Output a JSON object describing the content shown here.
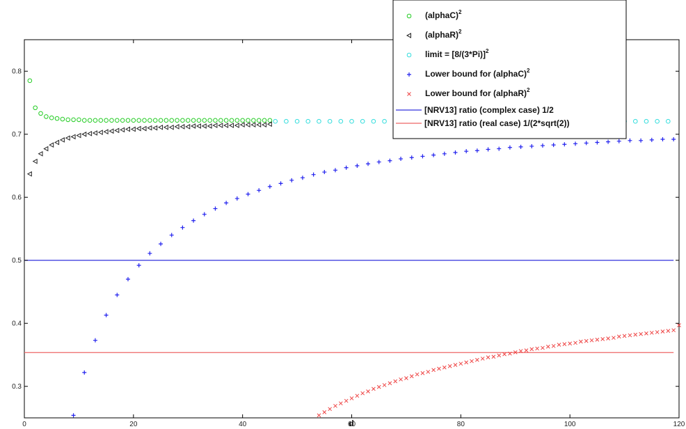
{
  "chart_data": {
    "type": "scatter",
    "xlabel": "d",
    "ylabel": "",
    "title": "",
    "xlim": [
      0,
      120
    ],
    "ylim": [
      0.25,
      0.85
    ],
    "xticks": [
      0,
      20,
      40,
      60,
      80,
      100,
      120
    ],
    "yticks": [
      0.3,
      0.4,
      0.5,
      0.6,
      0.7,
      0.8
    ],
    "xtick_labels": [
      "0",
      "20",
      "40",
      "60",
      "80",
      "100",
      "120"
    ],
    "ytick_labels": [
      "0.3",
      "0.4",
      "0.5",
      "0.6",
      "0.7",
      "0.8"
    ],
    "grid": false,
    "legend_position": "top-right",
    "series": [
      {
        "name": "(alphaC)",
        "sup": "2",
        "marker": "circle",
        "color": "#22cc22",
        "x": [
          1,
          2,
          3,
          4,
          5,
          6,
          7,
          8,
          9,
          10,
          11,
          12,
          13,
          14,
          15,
          16,
          17,
          18,
          19,
          20,
          21,
          22,
          23,
          24,
          25,
          26,
          27,
          28,
          29,
          30,
          31,
          32,
          33,
          34,
          35,
          36,
          37,
          38,
          39,
          40,
          41,
          42,
          43,
          44,
          45
        ],
        "y": [
          0.785,
          0.742,
          0.733,
          0.728,
          0.726,
          0.725,
          0.724,
          0.723,
          0.723,
          0.723,
          0.722,
          0.722,
          0.722,
          0.722,
          0.722,
          0.722,
          0.722,
          0.722,
          0.722,
          0.722,
          0.722,
          0.722,
          0.722,
          0.722,
          0.722,
          0.722,
          0.722,
          0.722,
          0.722,
          0.722,
          0.722,
          0.722,
          0.722,
          0.722,
          0.722,
          0.722,
          0.722,
          0.722,
          0.722,
          0.722,
          0.722,
          0.722,
          0.722,
          0.722,
          0.722
        ]
      },
      {
        "name": "(alphaR)",
        "sup": "2",
        "marker": "triangle-left",
        "color": "#222222",
        "x": [
          1,
          2,
          3,
          4,
          5,
          6,
          7,
          8,
          9,
          10,
          11,
          12,
          13,
          14,
          15,
          16,
          17,
          18,
          19,
          20,
          21,
          22,
          23,
          24,
          25,
          26,
          27,
          28,
          29,
          30,
          31,
          32,
          33,
          34,
          35,
          36,
          37,
          38,
          39,
          40,
          41,
          42,
          43,
          44,
          45
        ],
        "y": [
          0.637,
          0.657,
          0.669,
          0.677,
          0.683,
          0.687,
          0.691,
          0.694,
          0.696,
          0.698,
          0.7,
          0.701,
          0.702,
          0.703,
          0.704,
          0.705,
          0.706,
          0.707,
          0.708,
          0.708,
          0.709,
          0.709,
          0.71,
          0.71,
          0.711,
          0.711,
          0.711,
          0.712,
          0.712,
          0.712,
          0.713,
          0.713,
          0.713,
          0.713,
          0.714,
          0.714,
          0.714,
          0.714,
          0.714,
          0.715,
          0.715,
          0.715,
          0.715,
          0.715,
          0.716
        ]
      },
      {
        "name": "limit = [8/(3*Pi)]",
        "sup": "2",
        "marker": "circle",
        "color": "#33dddd",
        "x": [
          46,
          48,
          50,
          52,
          54,
          56,
          58,
          60,
          62,
          64,
          66,
          68,
          70,
          72,
          74,
          76,
          78,
          80,
          82,
          84,
          86,
          88,
          90,
          92,
          94,
          96,
          98,
          100,
          102,
          104,
          106,
          108,
          110,
          112,
          114,
          116,
          118
        ],
        "y": [
          0.7205,
          0.7205,
          0.7205,
          0.7205,
          0.7205,
          0.7205,
          0.7205,
          0.7205,
          0.7205,
          0.7205,
          0.7205,
          0.7205,
          0.7205,
          0.7205,
          0.7205,
          0.7205,
          0.7205,
          0.7205,
          0.7205,
          0.7205,
          0.7205,
          0.7205,
          0.7205,
          0.7205,
          0.7205,
          0.7205,
          0.7205,
          0.7205,
          0.7205,
          0.7205,
          0.7205,
          0.7205,
          0.7205,
          0.7205,
          0.7205,
          0.7205,
          0.7205
        ]
      },
      {
        "name": "Lower bound for (alphaC)",
        "sup": "2",
        "marker": "plus",
        "color": "#2222ee",
        "x": [
          9,
          11,
          13,
          15,
          17,
          19,
          21,
          23,
          25,
          27,
          29,
          31,
          33,
          35,
          37,
          39,
          41,
          43,
          45,
          47,
          49,
          51,
          53,
          55,
          57,
          59,
          61,
          63,
          65,
          67,
          69,
          71,
          73,
          75,
          77,
          79,
          81,
          83,
          85,
          87,
          89,
          91,
          93,
          95,
          97,
          99,
          101,
          103,
          105,
          107,
          109,
          111,
          113,
          115,
          117,
          119
        ],
        "y": [
          0.254,
          0.322,
          0.373,
          0.413,
          0.445,
          0.47,
          0.492,
          0.511,
          0.526,
          0.54,
          0.552,
          0.563,
          0.573,
          0.582,
          0.591,
          0.598,
          0.605,
          0.611,
          0.617,
          0.622,
          0.627,
          0.631,
          0.636,
          0.64,
          0.643,
          0.647,
          0.65,
          0.653,
          0.656,
          0.658,
          0.661,
          0.663,
          0.665,
          0.667,
          0.669,
          0.671,
          0.673,
          0.674,
          0.676,
          0.677,
          0.679,
          0.68,
          0.681,
          0.682,
          0.683,
          0.684,
          0.685,
          0.686,
          0.687,
          0.688,
          0.689,
          0.69,
          0.69,
          0.691,
          0.692,
          0.692
        ]
      },
      {
        "name": "Lower bound for (alphaR)",
        "sup": "2",
        "marker": "x",
        "color": "#ee4444",
        "x": [
          53,
          54,
          55,
          56,
          57,
          58,
          59,
          60,
          61,
          62,
          63,
          64,
          65,
          66,
          67,
          68,
          69,
          70,
          71,
          72,
          73,
          74,
          75,
          76,
          77,
          78,
          79,
          80,
          81,
          82,
          83,
          84,
          85,
          86,
          87,
          88,
          89,
          90,
          91,
          92,
          93,
          94,
          95,
          96,
          97,
          98,
          99,
          100,
          101,
          102,
          103,
          104,
          105,
          106,
          107,
          108,
          109,
          110,
          111,
          112,
          113,
          114,
          115,
          116,
          117,
          118,
          119,
          120
        ],
        "y": [
          0.249,
          0.254,
          0.259,
          0.264,
          0.269,
          0.273,
          0.277,
          0.281,
          0.285,
          0.289,
          0.292,
          0.296,
          0.299,
          0.302,
          0.305,
          0.308,
          0.311,
          0.313,
          0.316,
          0.319,
          0.321,
          0.323,
          0.326,
          0.328,
          0.33,
          0.332,
          0.334,
          0.336,
          0.338,
          0.34,
          0.342,
          0.344,
          0.346,
          0.347,
          0.349,
          0.351,
          0.352,
          0.354,
          0.356,
          0.357,
          0.359,
          0.36,
          0.361,
          0.363,
          0.364,
          0.366,
          0.367,
          0.368,
          0.369,
          0.371,
          0.372,
          0.373,
          0.374,
          0.375,
          0.376,
          0.377,
          0.379,
          0.38,
          0.381,
          0.382,
          0.383,
          0.384,
          0.385,
          0.386,
          0.387,
          0.388,
          0.389,
          0.397
        ]
      }
    ],
    "lines": [
      {
        "name": "[NRV13] ratio (complex case) 1/2",
        "y": 0.5,
        "x_range": [
          0,
          119
        ],
        "color": "#3333dd"
      },
      {
        "name": "[NRV13] ratio (real case) 1/(2*sqrt(2))",
        "y": 0.3536,
        "x_range": [
          0,
          119
        ],
        "color": "#ee6666"
      }
    ]
  }
}
